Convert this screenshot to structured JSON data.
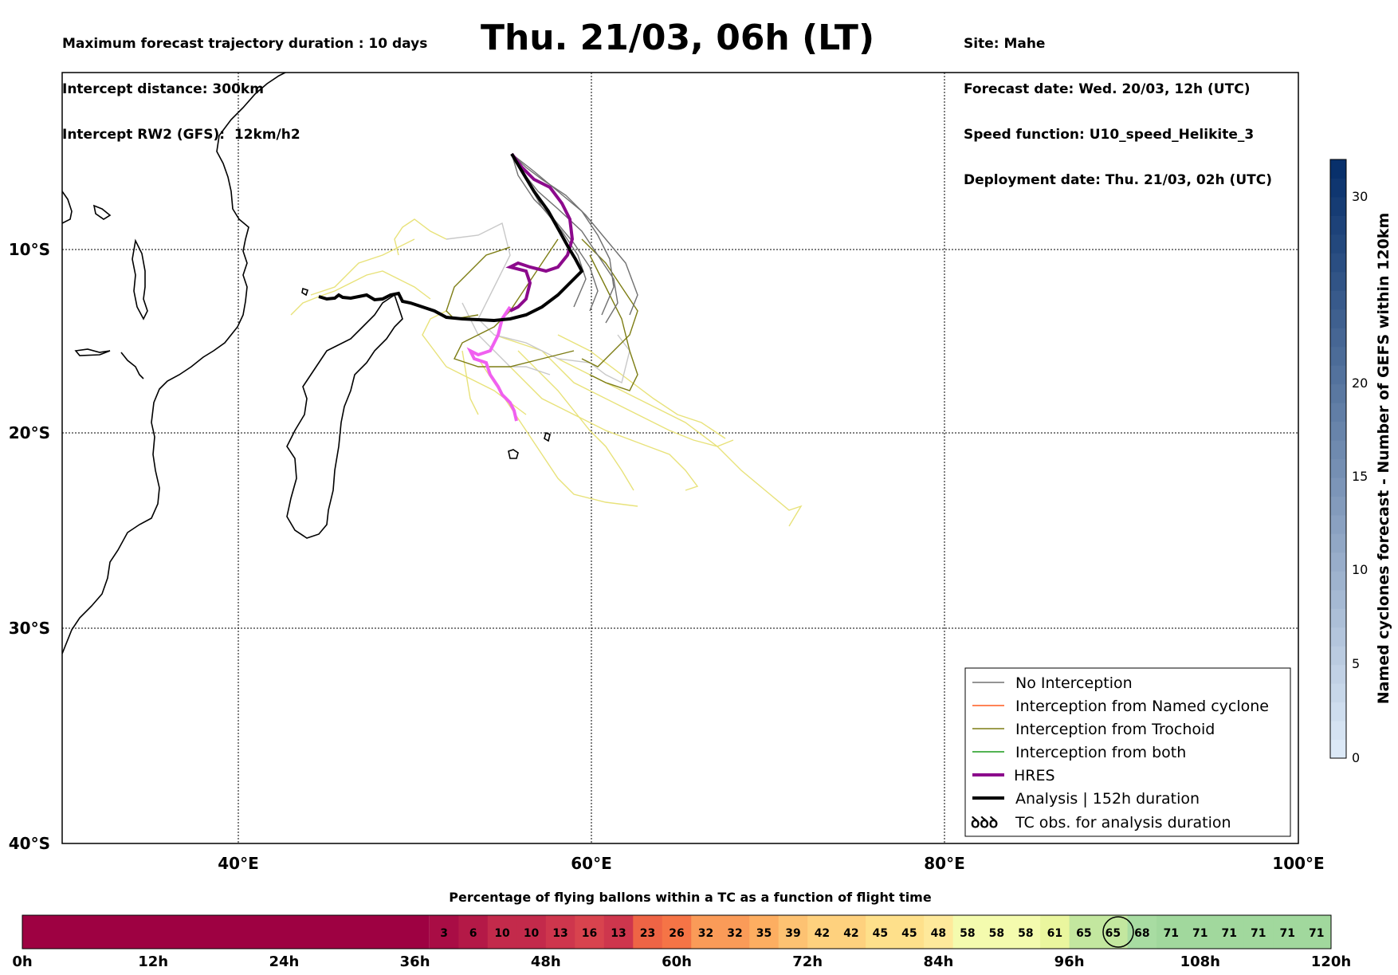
{
  "header_left": {
    "line1": "Maximum forecast trajectory duration : 10 days",
    "line2": "Intercept distance: 300km",
    "line3": "Intercept RW2 (GFS):  12km/h2"
  },
  "title": "Thu. 21/03, 06h (LT)",
  "header_right": {
    "line1": "Site: Mahe",
    "line2": "Forecast date: Wed. 20/03, 12h (UTC)",
    "line3": "Speed function: U10_speed_Helikite_3",
    "line4": "Deployment date: Thu. 21/03, 02h (UTC)"
  },
  "map": {
    "lon_labels": [
      "40°E",
      "60°E",
      "80°E",
      "100°E"
    ],
    "lat_labels": [
      "10°S",
      "20°S",
      "30°S",
      "40°S"
    ],
    "legend": {
      "no_interception": "No Interception",
      "named_cyclone": "Interception from Named cyclone",
      "trochoid": "Interception from Trochoid",
      "both": "Interception from both",
      "hres": "HRES",
      "analysis": "Analysis | 152h duration",
      "tc_obs_symbol": "ꝺꝺꝺ",
      "tc_obs": "TC obs. for analysis duration"
    },
    "colors": {
      "no_interception": "#707070",
      "named_cyclone": "#ff5a1e",
      "trochoid": "#7d7d14",
      "both": "#1a9a1a",
      "hres": "#8c0a8c",
      "analysis": "#000000",
      "ensemble_light": "#e8e27a",
      "ensemble_grey": "#c8c8c8",
      "hres_pink": "#f060f0"
    }
  },
  "colorbar": {
    "label": "Named cyclones forecast - Number of GEFS within 120km",
    "ticks": [
      "0",
      "5",
      "10",
      "15",
      "20",
      "30"
    ]
  },
  "timebar": {
    "title": "Percentage of flying ballons within a TC as a function of flight time",
    "time_labels": [
      "0h",
      "12h",
      "24h",
      "36h",
      "48h",
      "60h",
      "72h",
      "84h",
      "96h",
      "108h",
      "120h"
    ],
    "values": [
      "3",
      "6",
      "10",
      "10",
      "13",
      "16",
      "13",
      "23",
      "26",
      "32",
      "32",
      "35",
      "39",
      "42",
      "42",
      "45",
      "45",
      "48",
      "58",
      "58",
      "58",
      "61",
      "65",
      "65",
      "68",
      "71",
      "71",
      "71",
      "71",
      "71",
      "71"
    ],
    "highlight": "68"
  }
}
